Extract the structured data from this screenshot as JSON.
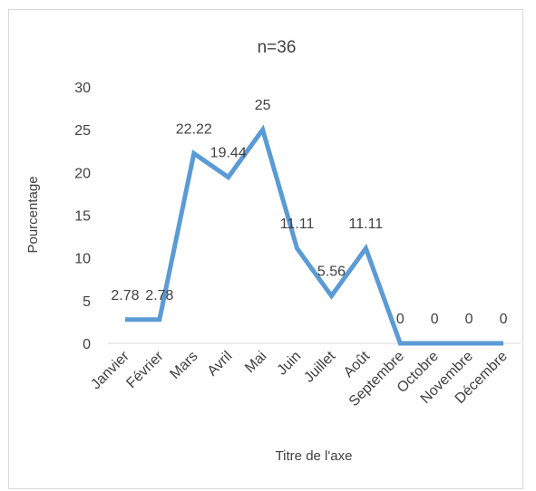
{
  "chart_data": {
    "type": "line",
    "title": "n=36",
    "xlabel": "Titre de l'axe",
    "ylabel": "Pourcentage",
    "ylim": [
      0,
      30
    ],
    "yticks": [
      0,
      5,
      10,
      15,
      20,
      25,
      30
    ],
    "grid": false,
    "legend": "none",
    "categories": [
      "Janvier",
      "Février",
      "Mars",
      "Avril",
      "Mai",
      "Juin",
      "Juillet",
      "Août",
      "Septembre",
      "Octobre",
      "Novembre",
      "Décembre"
    ],
    "series": [
      {
        "values": [
          2.78,
          2.78,
          22.22,
          19.44,
          25,
          11.11,
          5.56,
          11.11,
          0,
          0,
          0,
          0
        ],
        "data_labels": [
          "2.78",
          "2.78",
          "22.22",
          "19.44",
          "25",
          "11.11",
          "5.56",
          "11.11",
          "0",
          "0",
          "0",
          "0"
        ],
        "color": "#5b9bd5"
      }
    ]
  }
}
